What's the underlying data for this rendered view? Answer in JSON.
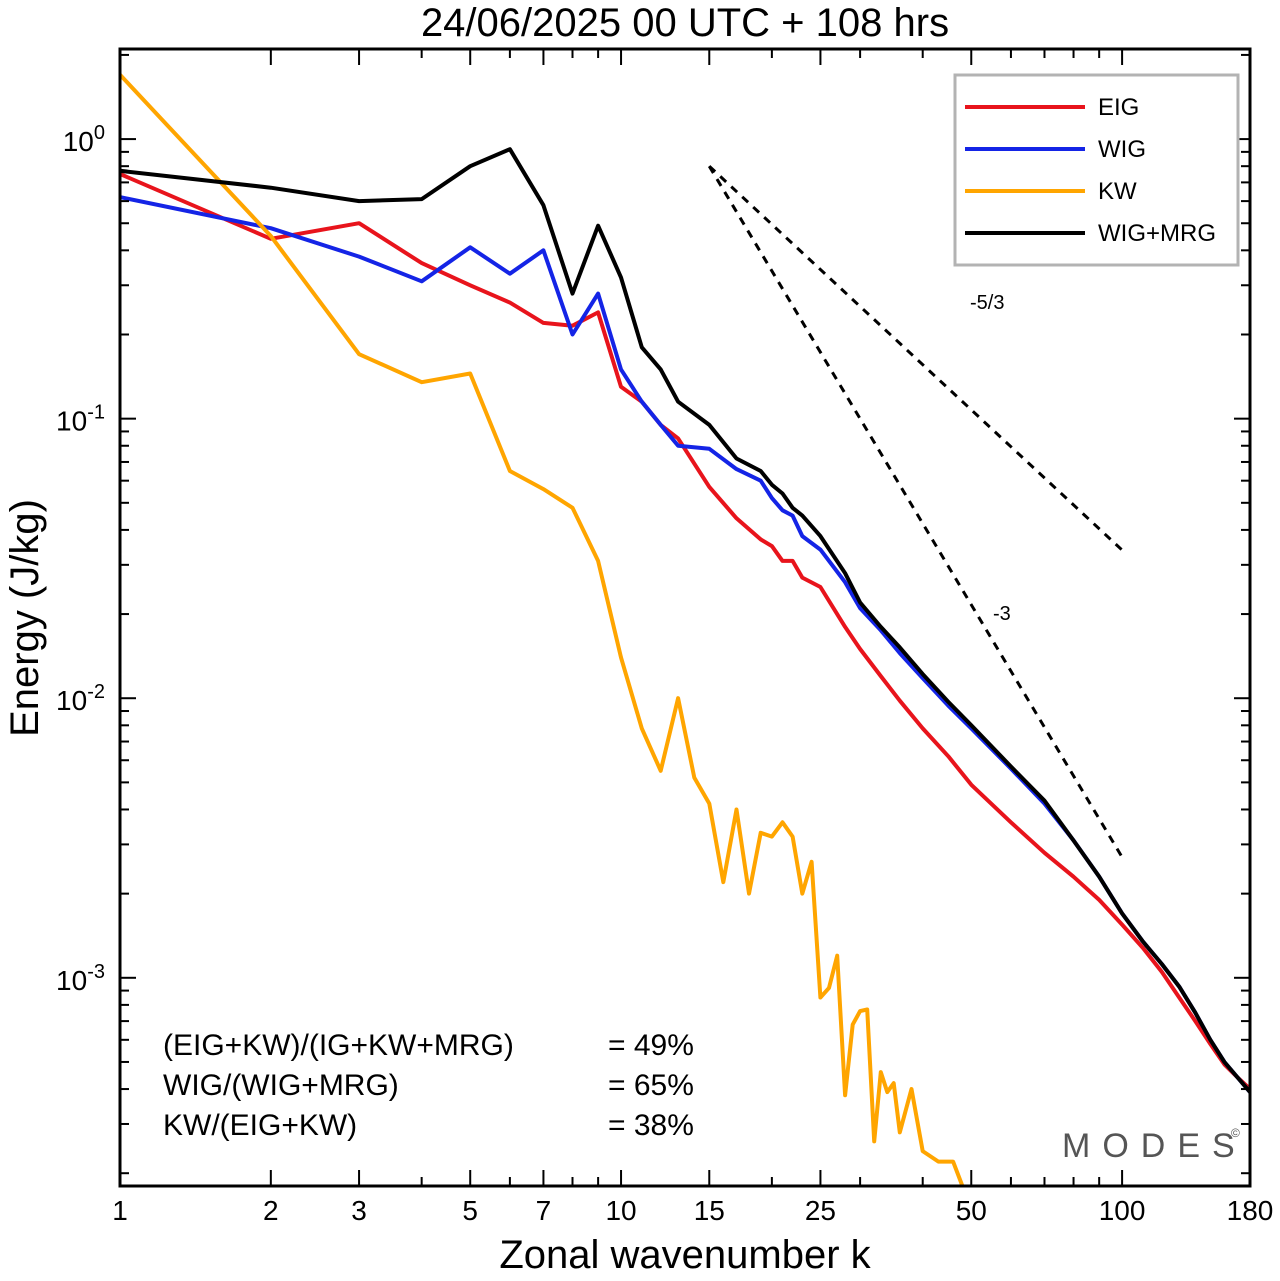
{
  "chart_data": {
    "type": "line",
    "title": "24/06/2025  00 UTC  + 108 hrs",
    "xlabel": "Zonal wavenumber k",
    "ylabel": "Energy (J/kg)",
    "x_scale": "log",
    "y_scale": "log",
    "xlim": [
      1,
      180
    ],
    "ylim": [
      0.00018,
      2.1
    ],
    "x_ticks": [
      1,
      2,
      3,
      5,
      7,
      10,
      15,
      25,
      50,
      100,
      180
    ],
    "y_ticks": [
      {
        "base": "10",
        "exp": "0",
        "value": 1
      },
      {
        "base": "10",
        "exp": "-1",
        "value": 0.1
      },
      {
        "base": "10",
        "exp": "-2",
        "value": 0.01
      },
      {
        "base": "10",
        "exp": "-3",
        "value": 0.001
      }
    ],
    "grid": false,
    "legend_position": "top-right",
    "series": [
      {
        "name": "EIG",
        "color": "#e8141c",
        "x": [
          1,
          2,
          3,
          4,
          5,
          6,
          7,
          8,
          9,
          10,
          11,
          12,
          13,
          15,
          17,
          19,
          20,
          21,
          22,
          23,
          25,
          28,
          30,
          33,
          36,
          40,
          45,
          50,
          60,
          70,
          80,
          90,
          100,
          110,
          120,
          130,
          140,
          150,
          160,
          170,
          180
        ],
        "y": [
          0.75,
          0.44,
          0.5,
          0.36,
          0.3,
          0.26,
          0.22,
          0.215,
          0.24,
          0.13,
          0.115,
          0.095,
          0.085,
          0.057,
          0.044,
          0.037,
          0.035,
          0.031,
          0.031,
          0.027,
          0.025,
          0.018,
          0.015,
          0.012,
          0.0098,
          0.0078,
          0.0062,
          0.0049,
          0.0036,
          0.0028,
          0.0023,
          0.0019,
          0.00155,
          0.00128,
          0.00105,
          0.00085,
          0.0007,
          0.00058,
          0.00049,
          0.00044,
          0.0004
        ]
      },
      {
        "name": "WIG",
        "color": "#1424e6",
        "x": [
          1,
          2,
          3,
          4,
          5,
          6,
          7,
          8,
          9,
          10,
          11,
          12,
          13,
          15,
          17,
          19,
          20,
          21,
          22,
          23,
          25,
          28,
          30,
          33,
          36,
          40,
          45,
          50,
          60,
          70,
          80,
          90,
          100,
          110,
          120,
          130,
          140,
          150,
          160,
          170,
          180
        ],
        "y": [
          0.62,
          0.48,
          0.38,
          0.31,
          0.41,
          0.33,
          0.4,
          0.2,
          0.28,
          0.15,
          0.115,
          0.095,
          0.08,
          0.078,
          0.066,
          0.06,
          0.052,
          0.047,
          0.045,
          0.038,
          0.034,
          0.026,
          0.021,
          0.0175,
          0.0145,
          0.0118,
          0.0094,
          0.0078,
          0.0056,
          0.0042,
          0.0031,
          0.0023,
          0.0017,
          0.00135,
          0.00112,
          0.00093,
          0.00075,
          0.0006,
          0.0005,
          0.00044,
          0.00039
        ]
      },
      {
        "name": "KW",
        "color": "#ffa500",
        "x": [
          1,
          2,
          3,
          4,
          5,
          6,
          7,
          8,
          9,
          10,
          11,
          12,
          13,
          14,
          15,
          16,
          17,
          18,
          19,
          20,
          21,
          22,
          23,
          24,
          25,
          26,
          27,
          28,
          29,
          30,
          31,
          32,
          33,
          34,
          35,
          36,
          38,
          40,
          43,
          46,
          48
        ],
        "y": [
          1.7,
          0.45,
          0.17,
          0.135,
          0.145,
          0.065,
          0.056,
          0.048,
          0.031,
          0.014,
          0.0078,
          0.0055,
          0.01,
          0.0052,
          0.0042,
          0.0022,
          0.004,
          0.002,
          0.0033,
          0.0032,
          0.0036,
          0.0032,
          0.002,
          0.0026,
          0.00085,
          0.00092,
          0.0012,
          0.00038,
          0.00068,
          0.00076,
          0.00077,
          0.00026,
          0.00046,
          0.00039,
          0.00042,
          0.00028,
          0.0004,
          0.00024,
          0.00022,
          0.00022,
          0.00018
        ]
      },
      {
        "name": "WIG+MRG",
        "color": "#000000",
        "x": [
          1,
          2,
          3,
          4,
          5,
          6,
          7,
          8,
          9,
          10,
          11,
          12,
          13,
          15,
          17,
          19,
          20,
          21,
          22,
          23,
          25,
          28,
          30,
          33,
          36,
          40,
          45,
          50,
          60,
          70,
          80,
          90,
          100,
          110,
          120,
          130,
          140,
          150,
          160,
          170,
          180
        ],
        "y": [
          0.77,
          0.67,
          0.6,
          0.61,
          0.8,
          0.92,
          0.58,
          0.28,
          0.49,
          0.32,
          0.18,
          0.15,
          0.115,
          0.095,
          0.072,
          0.065,
          0.058,
          0.054,
          0.048,
          0.045,
          0.038,
          0.028,
          0.022,
          0.018,
          0.0152,
          0.0122,
          0.0097,
          0.008,
          0.0057,
          0.0043,
          0.0031,
          0.0023,
          0.0017,
          0.00135,
          0.00112,
          0.00093,
          0.00075,
          0.0006,
          0.0005,
          0.00044,
          0.00039
        ]
      }
    ],
    "reference_lines": [
      {
        "label": "-5/3",
        "slope": -1.6667,
        "x": [
          15,
          100
        ],
        "y_start": 0.8
      },
      {
        "label": "-3",
        "slope": -3,
        "x": [
          15,
          100
        ],
        "y_start": 0.8
      }
    ],
    "annotations": [
      {
        "label": "(EIG+KW)/(IG+KW+MRG)",
        "value": "= 49%"
      },
      {
        "label": "WIG/(WIG+MRG)",
        "value": "= 65%"
      },
      {
        "label": "KW/(EIG+KW)",
        "value": "= 38%"
      }
    ],
    "watermark": {
      "text": "MODES",
      "mark": "©"
    }
  }
}
